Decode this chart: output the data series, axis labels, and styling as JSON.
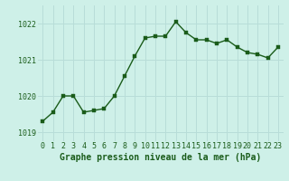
{
  "hours": [
    0,
    1,
    2,
    3,
    4,
    5,
    6,
    7,
    8,
    9,
    10,
    11,
    12,
    13,
    14,
    15,
    16,
    17,
    18,
    19,
    20,
    21,
    22,
    23
  ],
  "pressure": [
    1019.3,
    1019.55,
    1020.0,
    1020.0,
    1019.55,
    1019.6,
    1019.65,
    1020.0,
    1020.55,
    1021.1,
    1021.6,
    1021.65,
    1021.65,
    1022.05,
    1021.75,
    1021.55,
    1021.55,
    1021.45,
    1021.55,
    1021.35,
    1021.2,
    1021.15,
    1021.05,
    1021.35
  ],
  "line_color": "#1a5c1a",
  "marker_color": "#1a5c1a",
  "bg_color": "#cef0e8",
  "grid_color": "#b8ddd8",
  "xlabel": "Graphe pression niveau de la mer (hPa)",
  "xlabel_color": "#1a5c1a",
  "tick_color": "#1a5c1a",
  "ylim": [
    1018.75,
    1022.5
  ],
  "yticks": [
    1019,
    1020,
    1021,
    1022
  ],
  "xlim": [
    -0.5,
    23.5
  ],
  "xticks": [
    0,
    1,
    2,
    3,
    4,
    5,
    6,
    7,
    8,
    9,
    10,
    11,
    12,
    13,
    14,
    15,
    16,
    17,
    18,
    19,
    20,
    21,
    22,
    23
  ],
  "marker_size": 2.8,
  "line_width": 1.0,
  "xlabel_fontsize": 7.0,
  "tick_fontsize": 6.0
}
